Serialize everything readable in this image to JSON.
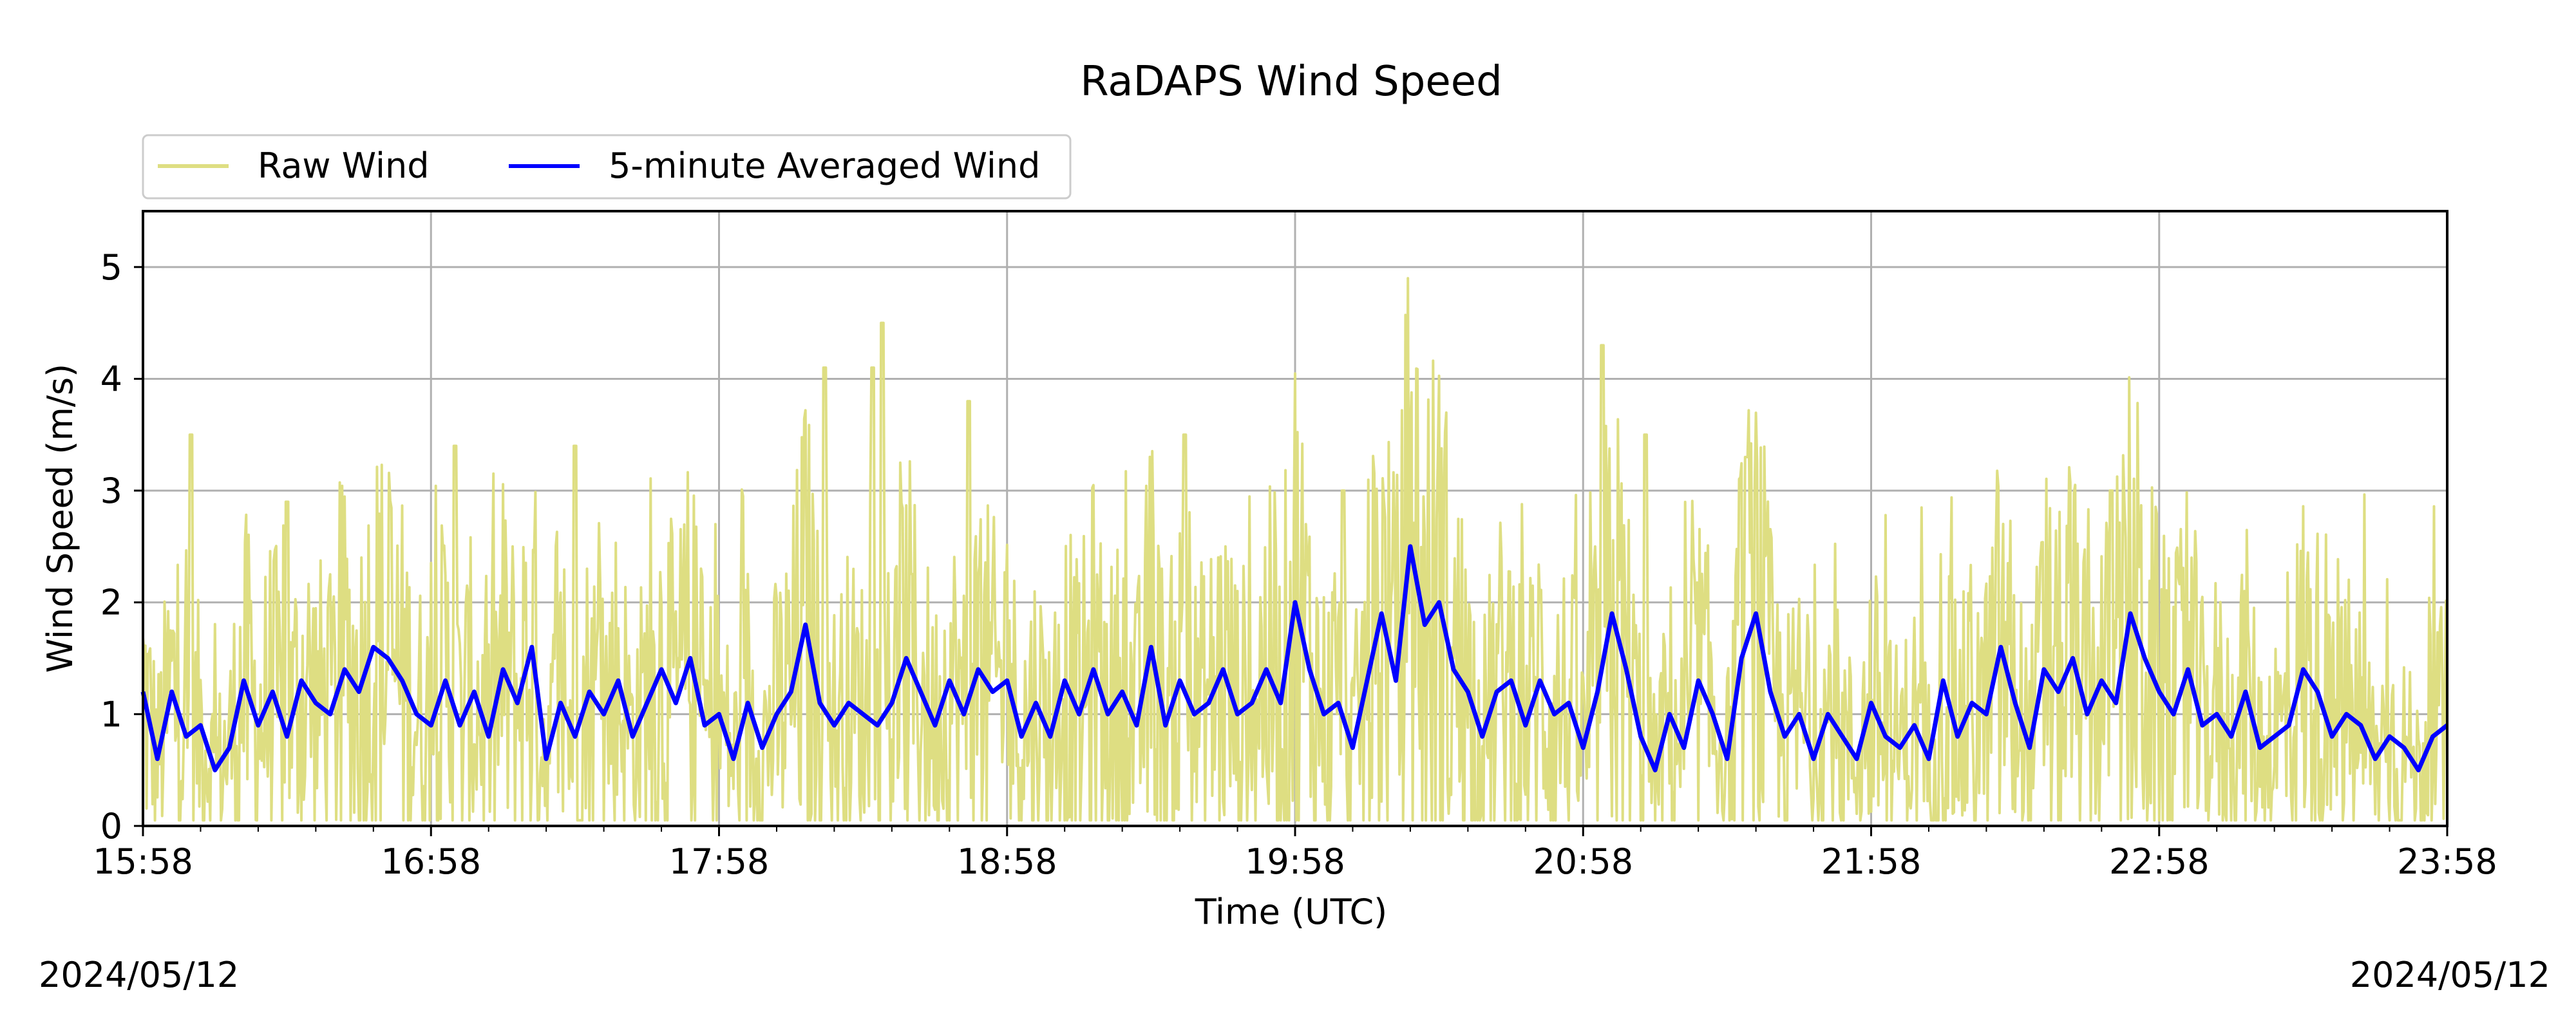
{
  "chart_data": {
    "type": "line",
    "title": "RaDAPS Wind Speed",
    "xlabel": "Time (UTC)",
    "ylabel": "Wind Speed (m/s)",
    "x_ticks": [
      "15:58",
      "16:58",
      "17:58",
      "18:58",
      "19:58",
      "20:58",
      "21:58",
      "22:58",
      "23:58"
    ],
    "x_range_minutes": [
      0,
      480
    ],
    "ylim": [
      0,
      5.5
    ],
    "y_ticks": [
      0,
      1,
      2,
      3,
      4,
      5
    ],
    "grid": true,
    "legend_position": "top-left, above plot",
    "date_left": "2024/05/12",
    "date_right": "2024/05/12",
    "series": [
      {
        "name": "Raw Wind",
        "color": "#dede82",
        "style": "dense noisy line, mostly 0.1–2.5 m/s with spikes",
        "peaks": [
          {
            "x": "16:08",
            "y": 3.5
          },
          {
            "x": "16:28",
            "y": 2.9
          },
          {
            "x": "17:03",
            "y": 3.4
          },
          {
            "x": "17:28",
            "y": 3.4
          },
          {
            "x": "18:20",
            "y": 4.1
          },
          {
            "x": "18:30",
            "y": 4.1
          },
          {
            "x": "18:32",
            "y": 4.5
          },
          {
            "x": "18:50",
            "y": 3.8
          },
          {
            "x": "19:35",
            "y": 3.5
          },
          {
            "x": "20:08",
            "y": 3.0
          },
          {
            "x": "21:02",
            "y": 4.3
          },
          {
            "x": "21:11",
            "y": 3.5
          },
          {
            "x": "21:32",
            "y": 3.3
          },
          {
            "x": "22:48",
            "y": 3.0
          }
        ]
      },
      {
        "name": "5-minute Averaged Wind",
        "color": "#0000ff",
        "style": "smoothed line",
        "points": [
          [
            0,
            1.2
          ],
          [
            3,
            0.6
          ],
          [
            6,
            1.2
          ],
          [
            9,
            0.8
          ],
          [
            12,
            0.9
          ],
          [
            15,
            0.5
          ],
          [
            18,
            0.7
          ],
          [
            21,
            1.3
          ],
          [
            24,
            0.9
          ],
          [
            27,
            1.2
          ],
          [
            30,
            0.8
          ],
          [
            33,
            1.3
          ],
          [
            36,
            1.1
          ],
          [
            39,
            1.0
          ],
          [
            42,
            1.4
          ],
          [
            45,
            1.2
          ],
          [
            48,
            1.6
          ],
          [
            51,
            1.5
          ],
          [
            54,
            1.3
          ],
          [
            57,
            1.0
          ],
          [
            60,
            0.9
          ],
          [
            63,
            1.3
          ],
          [
            66,
            0.9
          ],
          [
            69,
            1.2
          ],
          [
            72,
            0.8
          ],
          [
            75,
            1.4
          ],
          [
            78,
            1.1
          ],
          [
            81,
            1.6
          ],
          [
            84,
            0.6
          ],
          [
            87,
            1.1
          ],
          [
            90,
            0.8
          ],
          [
            93,
            1.2
          ],
          [
            96,
            1.0
          ],
          [
            99,
            1.3
          ],
          [
            102,
            0.8
          ],
          [
            105,
            1.1
          ],
          [
            108,
            1.4
          ],
          [
            111,
            1.1
          ],
          [
            114,
            1.5
          ],
          [
            117,
            0.9
          ],
          [
            120,
            1.0
          ],
          [
            123,
            0.6
          ],
          [
            126,
            1.1
          ],
          [
            129,
            0.7
          ],
          [
            132,
            1.0
          ],
          [
            135,
            1.2
          ],
          [
            138,
            1.8
          ],
          [
            141,
            1.1
          ],
          [
            144,
            0.9
          ],
          [
            147,
            1.1
          ],
          [
            150,
            1.0
          ],
          [
            153,
            0.9
          ],
          [
            156,
            1.1
          ],
          [
            159,
            1.5
          ],
          [
            162,
            1.2
          ],
          [
            165,
            0.9
          ],
          [
            168,
            1.3
          ],
          [
            171,
            1.0
          ],
          [
            174,
            1.4
          ],
          [
            177,
            1.2
          ],
          [
            180,
            1.3
          ],
          [
            183,
            0.8
          ],
          [
            186,
            1.1
          ],
          [
            189,
            0.8
          ],
          [
            192,
            1.3
          ],
          [
            195,
            1.0
          ],
          [
            198,
            1.4
          ],
          [
            201,
            1.0
          ],
          [
            204,
            1.2
          ],
          [
            207,
            0.9
          ],
          [
            210,
            1.6
          ],
          [
            213,
            0.9
          ],
          [
            216,
            1.3
          ],
          [
            219,
            1.0
          ],
          [
            222,
            1.1
          ],
          [
            225,
            1.4
          ],
          [
            228,
            1.0
          ],
          [
            231,
            1.1
          ],
          [
            234,
            1.4
          ],
          [
            237,
            1.1
          ],
          [
            240,
            2.0
          ],
          [
            243,
            1.4
          ],
          [
            246,
            1.0
          ],
          [
            249,
            1.1
          ],
          [
            252,
            0.7
          ],
          [
            255,
            1.3
          ],
          [
            258,
            1.9
          ],
          [
            261,
            1.3
          ],
          [
            264,
            2.5
          ],
          [
            267,
            1.8
          ],
          [
            270,
            2.0
          ],
          [
            273,
            1.4
          ],
          [
            276,
            1.2
          ],
          [
            279,
            0.8
          ],
          [
            282,
            1.2
          ],
          [
            285,
            1.3
          ],
          [
            288,
            0.9
          ],
          [
            291,
            1.3
          ],
          [
            294,
            1.0
          ],
          [
            297,
            1.1
          ],
          [
            300,
            0.7
          ],
          [
            303,
            1.2
          ],
          [
            306,
            1.9
          ],
          [
            309,
            1.4
          ],
          [
            312,
            0.8
          ],
          [
            315,
            0.5
          ],
          [
            318,
            1.0
          ],
          [
            321,
            0.7
          ],
          [
            324,
            1.3
          ],
          [
            327,
            1.0
          ],
          [
            330,
            0.6
          ],
          [
            333,
            1.5
          ],
          [
            336,
            1.9
          ],
          [
            339,
            1.2
          ],
          [
            342,
            0.8
          ],
          [
            345,
            1.0
          ],
          [
            348,
            0.6
          ],
          [
            351,
            1.0
          ],
          [
            354,
            0.8
          ],
          [
            357,
            0.6
          ],
          [
            360,
            1.1
          ],
          [
            363,
            0.8
          ],
          [
            366,
            0.7
          ],
          [
            369,
            0.9
          ],
          [
            372,
            0.6
          ],
          [
            375,
            1.3
          ],
          [
            378,
            0.8
          ],
          [
            381,
            1.1
          ],
          [
            384,
            1.0
          ],
          [
            387,
            1.6
          ],
          [
            390,
            1.1
          ],
          [
            393,
            0.7
          ],
          [
            396,
            1.4
          ],
          [
            399,
            1.2
          ],
          [
            402,
            1.5
          ],
          [
            405,
            1.0
          ],
          [
            408,
            1.3
          ],
          [
            411,
            1.1
          ],
          [
            414,
            1.9
          ],
          [
            417,
            1.5
          ],
          [
            420,
            1.2
          ],
          [
            423,
            1.0
          ],
          [
            426,
            1.4
          ],
          [
            429,
            0.9
          ],
          [
            432,
            1.0
          ],
          [
            435,
            0.8
          ],
          [
            438,
            1.2
          ],
          [
            441,
            0.7
          ],
          [
            444,
            0.8
          ],
          [
            447,
            0.9
          ],
          [
            450,
            1.4
          ],
          [
            453,
            1.2
          ],
          [
            456,
            0.8
          ],
          [
            459,
            1.0
          ],
          [
            462,
            0.9
          ],
          [
            465,
            0.6
          ],
          [
            468,
            0.8
          ],
          [
            471,
            0.7
          ],
          [
            474,
            0.5
          ],
          [
            477,
            0.8
          ],
          [
            480,
            0.9
          ]
        ]
      }
    ]
  }
}
